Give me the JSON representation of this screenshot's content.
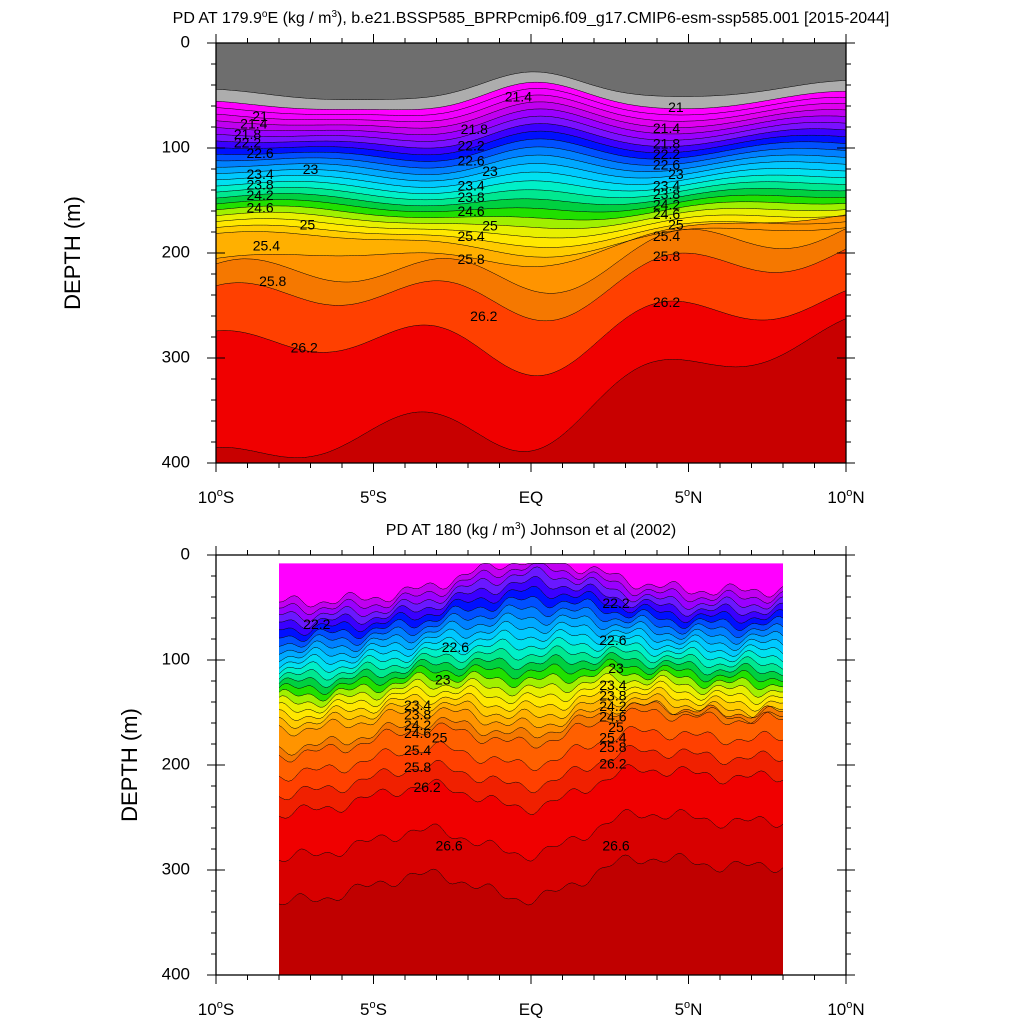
{
  "chart_data": [
    {
      "type": "contour",
      "title_prefix": "PD AT 179.9",
      "title_sup1": "o",
      "title_mid": "E (kg / m",
      "title_sup2": "3",
      "title_suffix": "), b.e21.BSSP585_BPRPcmip6.f09_g17.CMIP6-esm-ssp585.001 [2015-2044]",
      "ylabel": "DEPTH (m)",
      "ylim": [
        400,
        0
      ],
      "xlim": [
        -10,
        10
      ],
      "yticks": [
        0,
        100,
        200,
        300,
        400
      ],
      "ytick_labels": [
        "0",
        "100",
        "200",
        "300",
        "400"
      ],
      "xticks": [
        -10,
        -5,
        0,
        5,
        10
      ],
      "xtick_labels": [
        {
          "num": "10",
          "sup": "o",
          "hem": "S"
        },
        {
          "num": "5",
          "sup": "o",
          "hem": "S"
        },
        {
          "num": "EQ",
          "sup": "",
          "hem": ""
        },
        {
          "num": "5",
          "sup": "o",
          "hem": "N"
        },
        {
          "num": "10",
          "sup": "o",
          "hem": "N"
        }
      ],
      "lat_range": [
        -10,
        10
      ],
      "levels": [
        20.6,
        21.0,
        21.2,
        21.4,
        21.6,
        21.8,
        22.0,
        22.2,
        22.4,
        22.6,
        22.8,
        23.0,
        23.2,
        23.4,
        23.6,
        23.8,
        24.0,
        24.2,
        24.4,
        24.6,
        24.8,
        25.0,
        25.2,
        25.4,
        25.6,
        25.8,
        26.2,
        26.6
      ],
      "band_colors": [
        "#6e6e6e",
        "#adadad",
        "#ff00ff",
        "#f000ff",
        "#e000f0",
        "#c000f0",
        "#9a00ff",
        "#7a10ff",
        "#3a00ff",
        "#0010ff",
        "#0050ff",
        "#0080ff",
        "#00a8ff",
        "#00c8ff",
        "#00e0f0",
        "#00f0c8",
        "#00e890",
        "#00d040",
        "#20e000",
        "#a0f000",
        "#e8f000",
        "#ffe800",
        "#ffcc00",
        "#ffb000",
        "#ff9400",
        "#f57800",
        "#ff4000",
        "#f00000",
        "#c80000"
      ],
      "contour_labels": [
        {
          "text": "21",
          "lat": -8.6,
          "depth": 71
        },
        {
          "text": "21.4",
          "lat": -0.4,
          "depth": 52
        },
        {
          "text": "21",
          "lat": 4.6,
          "depth": 62
        },
        {
          "text": "21.4",
          "lat": -8.8,
          "depth": 78
        },
        {
          "text": "21.8",
          "lat": -9.0,
          "depth": 88
        },
        {
          "text": "22.2",
          "lat": -9.0,
          "depth": 96
        },
        {
          "text": "22.6",
          "lat": -8.6,
          "depth": 106
        },
        {
          "text": "23",
          "lat": -7.0,
          "depth": 121
        },
        {
          "text": "23.4",
          "lat": -8.6,
          "depth": 126
        },
        {
          "text": "23.8",
          "lat": -8.6,
          "depth": 136
        },
        {
          "text": "24.2",
          "lat": -8.6,
          "depth": 146
        },
        {
          "text": "24.6",
          "lat": -8.6,
          "depth": 158
        },
        {
          "text": "25",
          "lat": -7.1,
          "depth": 174
        },
        {
          "text": "25.4",
          "lat": -8.4,
          "depth": 194
        },
        {
          "text": "25.8",
          "lat": -8.2,
          "depth": 228
        },
        {
          "text": "26.2",
          "lat": -7.2,
          "depth": 291
        },
        {
          "text": "21.8",
          "lat": -1.8,
          "depth": 83
        },
        {
          "text": "22.2",
          "lat": -1.9,
          "depth": 99
        },
        {
          "text": "22.6",
          "lat": -1.9,
          "depth": 113
        },
        {
          "text": "23",
          "lat": -1.3,
          "depth": 123
        },
        {
          "text": "23.4",
          "lat": -1.9,
          "depth": 137
        },
        {
          "text": "23.8",
          "lat": -1.9,
          "depth": 148
        },
        {
          "text": "24.6",
          "lat": -1.9,
          "depth": 161
        },
        {
          "text": "25",
          "lat": -1.3,
          "depth": 175
        },
        {
          "text": "25.4",
          "lat": -1.9,
          "depth": 185
        },
        {
          "text": "25.8",
          "lat": -1.9,
          "depth": 207
        },
        {
          "text": "26.2",
          "lat": -1.5,
          "depth": 261
        },
        {
          "text": "21.4",
          "lat": 4.3,
          "depth": 82
        },
        {
          "text": "21.8",
          "lat": 4.3,
          "depth": 97
        },
        {
          "text": "22.2",
          "lat": 4.3,
          "depth": 107
        },
        {
          "text": "22.6",
          "lat": 4.3,
          "depth": 117
        },
        {
          "text": "23",
          "lat": 4.6,
          "depth": 126
        },
        {
          "text": "23.4",
          "lat": 4.3,
          "depth": 137
        },
        {
          "text": "23.8",
          "lat": 4.3,
          "depth": 145
        },
        {
          "text": "24.2",
          "lat": 4.3,
          "depth": 155
        },
        {
          "text": "24.6",
          "lat": 4.3,
          "depth": 164
        },
        {
          "text": "25",
          "lat": 4.6,
          "depth": 174
        },
        {
          "text": "25.4",
          "lat": 4.3,
          "depth": 185
        },
        {
          "text": "25.8",
          "lat": 4.3,
          "depth": 204
        },
        {
          "text": "26.2",
          "lat": 4.3,
          "depth": 248
        }
      ]
    },
    {
      "type": "contour",
      "title_prefix": "PD AT 180 (kg / m",
      "title_sup1": "",
      "title_mid": "",
      "title_sup2": "3",
      "title_suffix": ") Johnson et al (2002)",
      "ylabel": "DEPTH (m)",
      "ylim": [
        400,
        0
      ],
      "xlim": [
        -10,
        10
      ],
      "yticks": [
        0,
        100,
        200,
        300,
        400
      ],
      "ytick_labels": [
        "0",
        "100",
        "200",
        "300",
        "400"
      ],
      "xticks": [
        -10,
        -5,
        0,
        5,
        10
      ],
      "xtick_labels": [
        {
          "num": "10",
          "sup": "o",
          "hem": "S"
        },
        {
          "num": "5",
          "sup": "o",
          "hem": "S"
        },
        {
          "num": "EQ",
          "sup": "",
          "hem": ""
        },
        {
          "num": "5",
          "sup": "o",
          "hem": "N"
        },
        {
          "num": "10",
          "sup": "o",
          "hem": "N"
        }
      ],
      "lat_range": [
        -8,
        8
      ],
      "depth_top": 8,
      "levels": [
        21.6,
        21.8,
        22.0,
        22.2,
        22.4,
        22.6,
        22.8,
        23.0,
        23.2,
        23.4,
        23.6,
        23.8,
        24.0,
        24.2,
        24.4,
        24.6,
        24.8,
        25.0,
        25.2,
        25.4,
        25.6,
        25.8,
        26.0,
        26.2,
        26.4,
        26.6,
        26.8
      ],
      "band_colors": [
        "#ff00ff",
        "#c000f0",
        "#9a00ff",
        "#6a18ff",
        "#3a00ff",
        "#0010ff",
        "#0050ff",
        "#0080ff",
        "#00a8ff",
        "#00c8ff",
        "#00e0f0",
        "#00f0c8",
        "#00e890",
        "#00d040",
        "#20e000",
        "#a0f000",
        "#e8f000",
        "#ffe800",
        "#ffcc00",
        "#ffb000",
        "#ff9400",
        "#f57800",
        "#ff6000",
        "#ff4000",
        "#f02000",
        "#f00000",
        "#d80000",
        "#c00000"
      ],
      "contour_labels": [
        {
          "text": "22.2",
          "lat": -6.8,
          "depth": 67
        },
        {
          "text": "22.6",
          "lat": -2.4,
          "depth": 89
        },
        {
          "text": "23",
          "lat": -2.8,
          "depth": 120
        },
        {
          "text": "23.4",
          "lat": -3.6,
          "depth": 144
        },
        {
          "text": "23.8",
          "lat": -3.6,
          "depth": 153
        },
        {
          "text": "24.2",
          "lat": -3.6,
          "depth": 163
        },
        {
          "text": "24.6",
          "lat": -3.6,
          "depth": 171
        },
        {
          "text": "25",
          "lat": -2.9,
          "depth": 175
        },
        {
          "text": "25.4",
          "lat": -3.6,
          "depth": 187
        },
        {
          "text": "25.8",
          "lat": -3.6,
          "depth": 203
        },
        {
          "text": "26.2",
          "lat": -3.3,
          "depth": 222
        },
        {
          "text": "26.6",
          "lat": -2.6,
          "depth": 278
        },
        {
          "text": "22.2",
          "lat": 2.7,
          "depth": 47
        },
        {
          "text": "22.6",
          "lat": 2.6,
          "depth": 82
        },
        {
          "text": "23",
          "lat": 2.7,
          "depth": 109
        },
        {
          "text": "23.4",
          "lat": 2.6,
          "depth": 125
        },
        {
          "text": "23.8",
          "lat": 2.6,
          "depth": 135
        },
        {
          "text": "24.2",
          "lat": 2.6,
          "depth": 145
        },
        {
          "text": "24.6",
          "lat": 2.6,
          "depth": 155
        },
        {
          "text": "25",
          "lat": 2.7,
          "depth": 165
        },
        {
          "text": "25.4",
          "lat": 2.6,
          "depth": 175
        },
        {
          "text": "25.8",
          "lat": 2.6,
          "depth": 184
        },
        {
          "text": "26.2",
          "lat": 2.6,
          "depth": 200
        },
        {
          "text": "26.6",
          "lat": 2.7,
          "depth": 278
        }
      ]
    }
  ]
}
